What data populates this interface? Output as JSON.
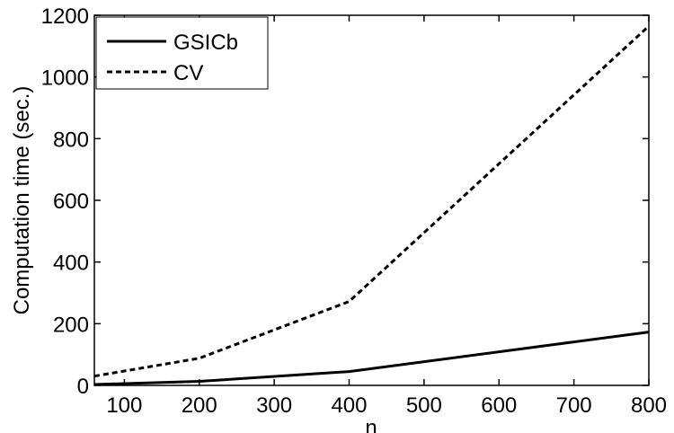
{
  "chart_data": {
    "type": "line",
    "xlabel": "n",
    "ylabel": "Computation time (sec.)",
    "xlim": [
      60,
      800
    ],
    "ylim": [
      0,
      1200
    ],
    "xticks": [
      100,
      200,
      300,
      400,
      500,
      600,
      700,
      800
    ],
    "yticks": [
      0,
      200,
      400,
      600,
      800,
      1000,
      1200
    ],
    "grid": false,
    "legend_position": "top-left",
    "series": [
      {
        "name": "GSICb",
        "style": "solid",
        "color": "#000000",
        "x": [
          60,
          200,
          400,
          800
        ],
        "y": [
          3,
          13,
          45,
          173
        ]
      },
      {
        "name": "CV",
        "style": "dashed",
        "color": "#000000",
        "x": [
          60,
          200,
          400,
          800
        ],
        "y": [
          30,
          88,
          272,
          1165
        ]
      }
    ]
  }
}
